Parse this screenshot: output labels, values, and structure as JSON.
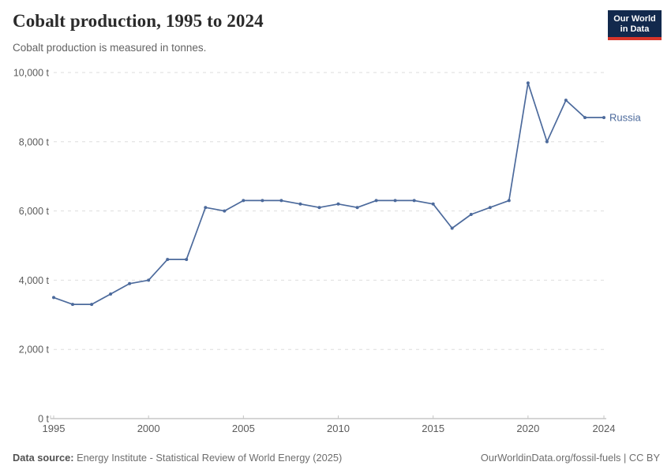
{
  "chart_data": {
    "type": "line",
    "title": "Cobalt production, 1995 to 2024",
    "subtitle": "Cobalt production is measured in tonnes.",
    "xlabel": "",
    "ylabel": "",
    "unit": "t",
    "grid": true,
    "legend_position": "end-of-line",
    "x": [
      1995,
      1996,
      1997,
      1998,
      1999,
      2000,
      2001,
      2002,
      2003,
      2004,
      2005,
      2006,
      2007,
      2008,
      2009,
      2010,
      2011,
      2012,
      2013,
      2014,
      2015,
      2016,
      2017,
      2018,
      2019,
      2020,
      2021,
      2022,
      2023,
      2024
    ],
    "series": [
      {
        "name": "Russia",
        "color": "#4c6a9c",
        "values": [
          3500,
          3300,
          3300,
          3600,
          3900,
          4000,
          4600,
          4600,
          6100,
          6000,
          6300,
          6300,
          6300,
          6200,
          6100,
          6200,
          6100,
          6300,
          6300,
          6300,
          6200,
          5500,
          5900,
          6100,
          6300,
          9700,
          8000,
          9200,
          8700,
          8700
        ]
      }
    ],
    "ylim": [
      0,
      10000
    ],
    "yticks": [
      {
        "value": 0,
        "label": "0 t"
      },
      {
        "value": 2000,
        "label": "2,000 t"
      },
      {
        "value": 4000,
        "label": "4,000 t"
      },
      {
        "value": 6000,
        "label": "6,000 t"
      },
      {
        "value": 8000,
        "label": "8,000 t"
      },
      {
        "value": 10000,
        "label": "10,000 t"
      }
    ],
    "xticks": [
      1995,
      2000,
      2005,
      2010,
      2015,
      2020,
      2024
    ]
  },
  "logo": {
    "line1": "Our World",
    "line2": "in Data",
    "bg_color": "#12294d",
    "accent_color": "#d7352a"
  },
  "footer": {
    "source_label": "Data source:",
    "source_text": "Energy Institute - Statistical Review of World Energy (2025)",
    "credit": "OurWorldinData.org/fossil-fuels | CC BY"
  }
}
